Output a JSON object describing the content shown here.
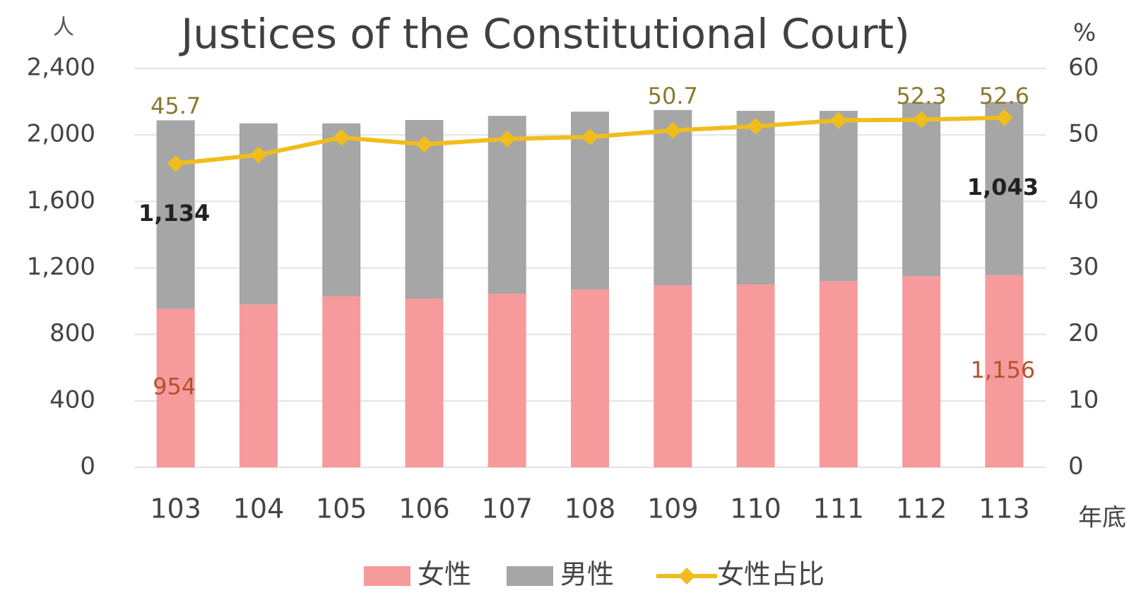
{
  "chart_data": {
    "type": "bar",
    "title": "Justices of the Constitutional Court)",
    "y_label": "人",
    "y2_label": "%",
    "x_label": "年底",
    "categories": [
      "103",
      "104",
      "105",
      "106",
      "107",
      "108",
      "109",
      "110",
      "111",
      "112",
      "113"
    ],
    "series": [
      {
        "name": "女性",
        "color": "#f79a9c",
        "type": "bar",
        "values": [
          954,
          980,
          1030,
          1015,
          1045,
          1070,
          1095,
          1100,
          1120,
          1150,
          1156
        ],
        "value_labels": [
          "954",
          null,
          null,
          null,
          null,
          null,
          null,
          null,
          null,
          null,
          "1,156"
        ]
      },
      {
        "name": "男性",
        "color": "#a6a6a6",
        "type": "bar",
        "values": [
          1134,
          1090,
          1040,
          1075,
          1070,
          1070,
          1055,
          1045,
          1025,
          1045,
          1043
        ],
        "value_labels": [
          "1,134",
          null,
          null,
          null,
          null,
          null,
          null,
          null,
          null,
          null,
          "1,043"
        ]
      },
      {
        "name": "女性占比",
        "color": "#f0bd1c",
        "type": "line",
        "axis": "y2",
        "values": [
          45.7,
          47.0,
          49.6,
          48.6,
          49.4,
          49.7,
          50.7,
          51.3,
          52.2,
          52.3,
          52.6
        ],
        "value_labels": [
          "45.7",
          null,
          null,
          null,
          null,
          null,
          "50.7",
          null,
          null,
          "52.3",
          "52.6"
        ]
      }
    ],
    "ylim": [
      0,
      2400
    ],
    "yticks": [
      0,
      400,
      800,
      {
        "value": 1200,
        "label": "1,200"
      },
      {
        "value": 1600,
        "label": "1,600"
      },
      {
        "value": 2000,
        "label": "2,000"
      },
      {
        "value": 2400,
        "label": "2,400"
      }
    ],
    "y2lim": [
      0,
      60
    ],
    "y2ticks": [
      0,
      10,
      20,
      30,
      40,
      50,
      60
    ],
    "grid": true,
    "legend": "bottom"
  }
}
